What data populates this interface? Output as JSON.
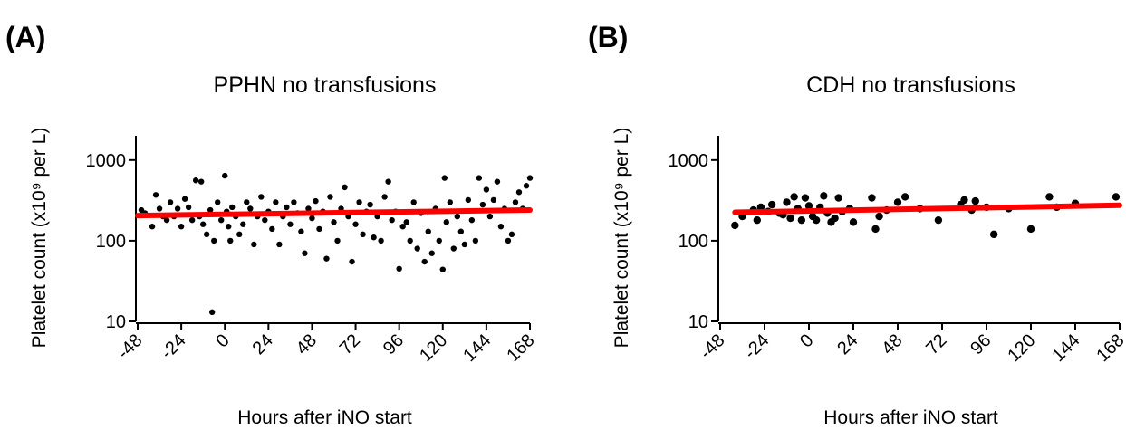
{
  "chart_data": [
    {
      "type": "scatter",
      "panel": "(A)",
      "title": "PPHN no transfusions",
      "x_label": "Hours after iNO start",
      "y_label": "Platelet count (x10⁹ per L)",
      "color": "#000000",
      "fit_color": "#ff0000",
      "log_scale": true,
      "xlim": [
        -48,
        168
      ],
      "ylim": [
        10,
        2000
      ],
      "xticks": [
        -48,
        -24,
        0,
        24,
        48,
        72,
        96,
        120,
        144,
        168
      ],
      "yticks": [
        10,
        100,
        1000
      ],
      "x": [
        -46,
        -44,
        -40,
        -38,
        -36,
        -34,
        -32,
        -30,
        -28,
        -26,
        -24,
        -22,
        -20,
        -18,
        -16,
        -14,
        -13,
        -12,
        -10,
        -8,
        -7,
        -6,
        -4,
        -2,
        0,
        1,
        2,
        3,
        4,
        6,
        8,
        10,
        12,
        14,
        16,
        18,
        20,
        22,
        24,
        26,
        28,
        30,
        32,
        34,
        36,
        38,
        40,
        42,
        44,
        46,
        48,
        50,
        52,
        54,
        56,
        58,
        60,
        62,
        64,
        66,
        68,
        70,
        72,
        74,
        76,
        78,
        80,
        82,
        84,
        86,
        88,
        90,
        92,
        94,
        96,
        98,
        100,
        102,
        104,
        106,
        108,
        110,
        112,
        114,
        116,
        118,
        120,
        121,
        122,
        124,
        126,
        128,
        130,
        132,
        134,
        136,
        138,
        140,
        142,
        144,
        146,
        148,
        150,
        152,
        154,
        156,
        158,
        160,
        162,
        164,
        166,
        168
      ],
      "values": [
        240,
        220,
        150,
        370,
        250,
        200,
        180,
        300,
        200,
        250,
        150,
        330,
        260,
        180,
        560,
        200,
        540,
        160,
        120,
        240,
        13,
        100,
        300,
        180,
        640,
        230,
        150,
        100,
        260,
        200,
        120,
        160,
        300,
        250,
        90,
        200,
        350,
        180,
        230,
        140,
        300,
        90,
        200,
        260,
        160,
        300,
        220,
        130,
        70,
        250,
        190,
        310,
        140,
        230,
        60,
        350,
        170,
        100,
        250,
        460,
        200,
        55,
        160,
        300,
        120,
        230,
        280,
        110,
        200,
        100,
        350,
        540,
        180,
        230,
        45,
        150,
        170,
        100,
        300,
        80,
        220,
        55,
        130,
        70,
        250,
        100,
        44,
        600,
        170,
        300,
        80,
        200,
        130,
        90,
        320,
        180,
        100,
        600,
        280,
        430,
        200,
        320,
        540,
        150,
        250,
        100,
        120,
        300,
        400,
        250,
        480,
        600
      ],
      "fit": {
        "x": [
          -48,
          168
        ],
        "values": [
          205,
          240
        ]
      }
    },
    {
      "type": "scatter",
      "panel": "(B)",
      "title": "CDH no transfusions",
      "x_label": "Hours after iNO start",
      "y_label": "Platelet count (x10⁹ per L)",
      "color": "#000000",
      "fit_color": "#ff0000",
      "log_scale": true,
      "xlim": [
        -48,
        168
      ],
      "ylim": [
        10,
        2000
      ],
      "xticks": [
        -48,
        -24,
        0,
        24,
        48,
        72,
        96,
        120,
        144,
        168
      ],
      "yticks": [
        10,
        100,
        1000
      ],
      "x": [
        -40,
        -36,
        -30,
        -28,
        -26,
        -22,
        -20,
        -16,
        -14,
        -12,
        -10,
        -8,
        -6,
        -4,
        -2,
        0,
        2,
        4,
        6,
        8,
        10,
        12,
        14,
        16,
        18,
        22,
        24,
        34,
        36,
        38,
        42,
        48,
        52,
        60,
        70,
        82,
        84,
        88,
        90,
        96,
        100,
        108,
        120,
        130,
        134,
        144,
        166
      ],
      "values": [
        155,
        200,
        240,
        180,
        260,
        230,
        280,
        220,
        210,
        300,
        190,
        350,
        250,
        180,
        340,
        270,
        200,
        180,
        260,
        360,
        220,
        170,
        190,
        340,
        230,
        250,
        170,
        340,
        140,
        200,
        240,
        300,
        350,
        250,
        180,
        280,
        320,
        240,
        310,
        260,
        120,
        250,
        140,
        350,
        260,
        290,
        350
      ],
      "fit": {
        "x": [
          -40,
          168
        ],
        "values": [
          225,
          275
        ]
      }
    }
  ]
}
